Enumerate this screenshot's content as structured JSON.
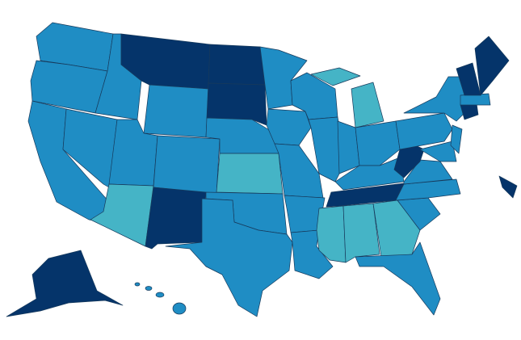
{
  "palette": {
    "mid": "#1f8dc4",
    "dark": "#05346a",
    "light": "#45b4c6"
  },
  "border": "#173a5c"
}
